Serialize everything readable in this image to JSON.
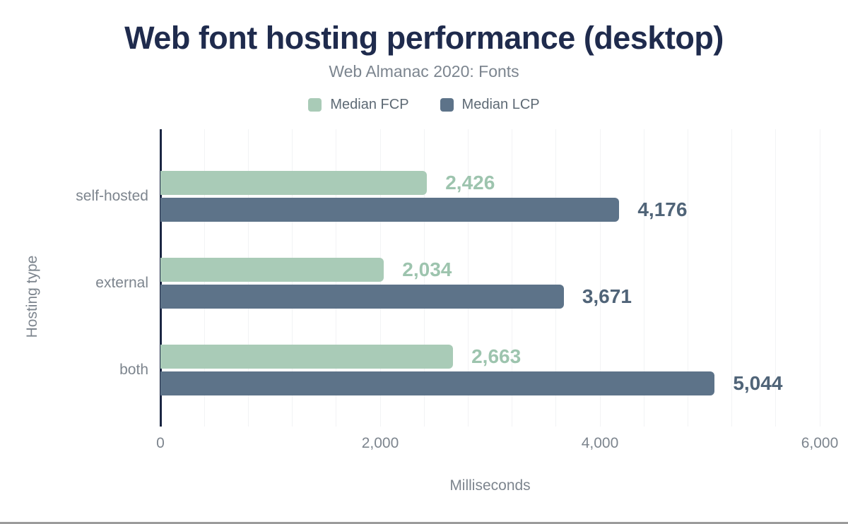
{
  "page": {
    "title": "Web font hosting performance (desktop)",
    "subtitle": "Web Almanac 2020: Fonts"
  },
  "colors": {
    "title": "#1f2b4d",
    "subtitle": "#7c858f",
    "legend_text": "#5d6974",
    "text_muted": "#7d858e",
    "axis_line": "#1b2643",
    "gridline": "#f2f3f5",
    "fcp": "#a9cbb7",
    "fcp_label": "#9dc4ae",
    "lcp": "#5d7389",
    "lcp_label": "#506478",
    "footer_bar": "#9b9b9b"
  },
  "chart_data": {
    "type": "bar",
    "orientation": "horizontal",
    "title": "Web font hosting performance (desktop)",
    "subtitle": "Web Almanac 2020: Fonts",
    "categories": [
      "self-hosted",
      "external",
      "both"
    ],
    "series": [
      {
        "name": "Median FCP",
        "color_key": "fcp",
        "values": [
          2426,
          2034,
          2663
        ],
        "labels": [
          "2,426",
          "2,034",
          "2,663"
        ]
      },
      {
        "name": "Median LCP",
        "color_key": "lcp",
        "values": [
          4176,
          3671,
          5044
        ],
        "labels": [
          "4,176",
          "3,671",
          "5,044"
        ]
      }
    ],
    "xlabel": "Milliseconds",
    "ylabel": "Hosting type",
    "xlim": [
      0,
      6000
    ],
    "xticks": [
      0,
      2000,
      4000,
      6000
    ],
    "xtick_labels": [
      "0",
      "2,000",
      "4,000",
      "6,000"
    ],
    "minor_gridline_step": 400,
    "grid": true,
    "legend_position": "top"
  }
}
